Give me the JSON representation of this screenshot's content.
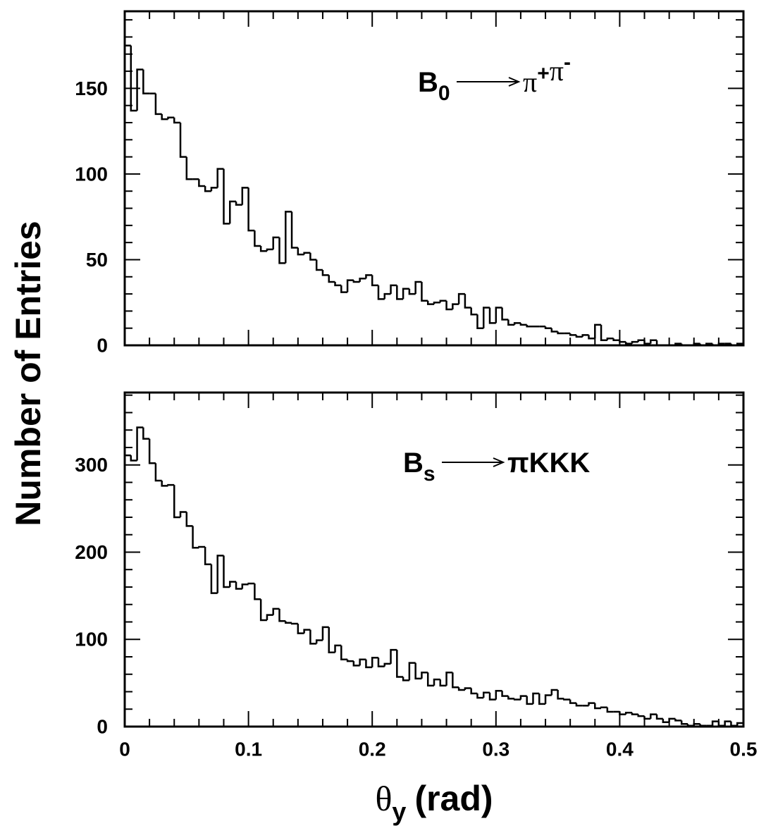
{
  "ylabel": "Number of Entries",
  "chart_data": [
    {
      "type": "histogram",
      "annotation": {
        "lhs": "B",
        "lhs_sub": "0",
        "rhs": [
          {
            "text": "π",
            "sup": "+"
          },
          {
            "text": "π",
            "sup": "-"
          }
        ]
      },
      "bins": [
        0,
        0.005,
        0.01,
        0.015,
        0.02,
        0.025,
        0.03,
        0.035,
        0.04,
        0.045,
        0.05,
        0.055,
        0.06,
        0.065,
        0.07,
        0.075,
        0.08,
        0.085,
        0.09,
        0.095,
        0.1,
        0.105,
        0.11,
        0.115,
        0.12,
        0.125,
        0.13,
        0.135,
        0.14,
        0.145,
        0.15,
        0.155,
        0.16,
        0.165,
        0.17,
        0.175,
        0.18,
        0.185,
        0.19,
        0.195,
        0.2,
        0.205,
        0.21,
        0.215,
        0.22,
        0.225,
        0.23,
        0.235,
        0.24,
        0.245,
        0.25,
        0.255,
        0.26,
        0.265,
        0.27,
        0.275,
        0.28,
        0.285,
        0.29,
        0.295,
        0.3,
        0.305,
        0.31,
        0.315,
        0.32,
        0.325,
        0.33,
        0.335,
        0.34,
        0.345,
        0.35,
        0.355,
        0.36,
        0.365,
        0.37,
        0.375,
        0.38,
        0.385,
        0.39,
        0.395,
        0.4,
        0.405,
        0.41,
        0.415,
        0.42,
        0.425,
        0.43,
        0.435,
        0.44,
        0.445,
        0.45,
        0.455,
        0.46,
        0.465,
        0.47,
        0.475,
        0.48,
        0.485,
        0.49,
        0.495,
        0.5
      ],
      "values": [
        175,
        137,
        161,
        147,
        147,
        135,
        132,
        133,
        130,
        110,
        97,
        97,
        93,
        90,
        92,
        103,
        71,
        84,
        82,
        92,
        67,
        58,
        55,
        56,
        63,
        48,
        78,
        57,
        53,
        54,
        50,
        44,
        41,
        37,
        35,
        31,
        38,
        37,
        39,
        41,
        35,
        27,
        30,
        35,
        27,
        33,
        30,
        37,
        26,
        24,
        25,
        26,
        21,
        24,
        30,
        22,
        18,
        10,
        22,
        13,
        22,
        15,
        12,
        13,
        12,
        11,
        11,
        11,
        10,
        8,
        7,
        7,
        6,
        5,
        6,
        4,
        12,
        3,
        4,
        3,
        2,
        1,
        2,
        3,
        1,
        3,
        0,
        0,
        0,
        1,
        0,
        0,
        1,
        0,
        1,
        0,
        1,
        1,
        0,
        1
      ],
      "xlim": [
        0,
        0.5
      ],
      "ylim": [
        0,
        195
      ],
      "xticks": [
        0,
        0.1,
        0.2,
        0.3,
        0.4,
        0.5
      ],
      "xminorticks": [
        0.02,
        0.04,
        0.06,
        0.08,
        0.12,
        0.14,
        0.16,
        0.18,
        0.22,
        0.24,
        0.26,
        0.28,
        0.32,
        0.34,
        0.36,
        0.38,
        0.42,
        0.44,
        0.46,
        0.48
      ],
      "yticks": [
        0,
        50,
        100,
        150
      ],
      "yminorticks": [
        10,
        20,
        30,
        40,
        60,
        70,
        80,
        90,
        110,
        120,
        130,
        140,
        160,
        170,
        180,
        190
      ],
      "color": "#000000"
    },
    {
      "type": "histogram",
      "annotation": {
        "lhs": "B",
        "lhs_sub": "s",
        "rhs": [
          {
            "text": "πKKK"
          }
        ]
      },
      "xlabel": {
        "symbol": "θ",
        "sub": "y",
        "unit": "(rad)"
      },
      "bins": [
        0,
        0.005,
        0.01,
        0.015,
        0.02,
        0.025,
        0.03,
        0.035,
        0.04,
        0.045,
        0.05,
        0.055,
        0.06,
        0.065,
        0.07,
        0.075,
        0.08,
        0.085,
        0.09,
        0.095,
        0.1,
        0.105,
        0.11,
        0.115,
        0.12,
        0.125,
        0.13,
        0.135,
        0.14,
        0.145,
        0.15,
        0.155,
        0.16,
        0.165,
        0.17,
        0.175,
        0.18,
        0.185,
        0.19,
        0.195,
        0.2,
        0.205,
        0.21,
        0.215,
        0.22,
        0.225,
        0.23,
        0.235,
        0.24,
        0.245,
        0.25,
        0.255,
        0.26,
        0.265,
        0.27,
        0.275,
        0.28,
        0.285,
        0.29,
        0.295,
        0.3,
        0.305,
        0.31,
        0.315,
        0.32,
        0.325,
        0.33,
        0.335,
        0.34,
        0.345,
        0.35,
        0.355,
        0.36,
        0.365,
        0.37,
        0.375,
        0.38,
        0.385,
        0.39,
        0.395,
        0.4,
        0.405,
        0.41,
        0.415,
        0.42,
        0.425,
        0.43,
        0.435,
        0.44,
        0.445,
        0.45,
        0.455,
        0.46,
        0.465,
        0.47,
        0.475,
        0.48,
        0.485,
        0.49,
        0.495,
        0.5
      ],
      "values": [
        311,
        305,
        343,
        330,
        302,
        282,
        276,
        277,
        240,
        246,
        230,
        205,
        206,
        186,
        153,
        196,
        160,
        166,
        158,
        163,
        164,
        146,
        122,
        128,
        135,
        121,
        119,
        118,
        107,
        111,
        95,
        99,
        114,
        85,
        93,
        77,
        75,
        70,
        77,
        68,
        79,
        69,
        72,
        88,
        57,
        53,
        73,
        55,
        62,
        47,
        54,
        47,
        62,
        45,
        42,
        44,
        38,
        33,
        39,
        31,
        41,
        35,
        32,
        31,
        35,
        26,
        38,
        26,
        36,
        42,
        32,
        31,
        27,
        24,
        24,
        27,
        21,
        22,
        17,
        17,
        14,
        16,
        14,
        12,
        9,
        14,
        9,
        5,
        9,
        7,
        3,
        1,
        3,
        1,
        1,
        6,
        1,
        6,
        1,
        4
      ],
      "xlim": [
        0,
        0.5
      ],
      "ylim": [
        0,
        383
      ],
      "xticks": [
        0,
        0.1,
        0.2,
        0.3,
        0.4,
        0.5
      ],
      "xminorticks": [
        0.02,
        0.04,
        0.06,
        0.08,
        0.12,
        0.14,
        0.16,
        0.18,
        0.22,
        0.24,
        0.26,
        0.28,
        0.32,
        0.34,
        0.36,
        0.38,
        0.42,
        0.44,
        0.46,
        0.48
      ],
      "yticks": [
        0,
        100,
        200,
        300
      ],
      "yminorticks": [
        20,
        40,
        60,
        80,
        120,
        140,
        160,
        180,
        220,
        240,
        260,
        280,
        320,
        340,
        360,
        380
      ],
      "color": "#000000"
    }
  ]
}
